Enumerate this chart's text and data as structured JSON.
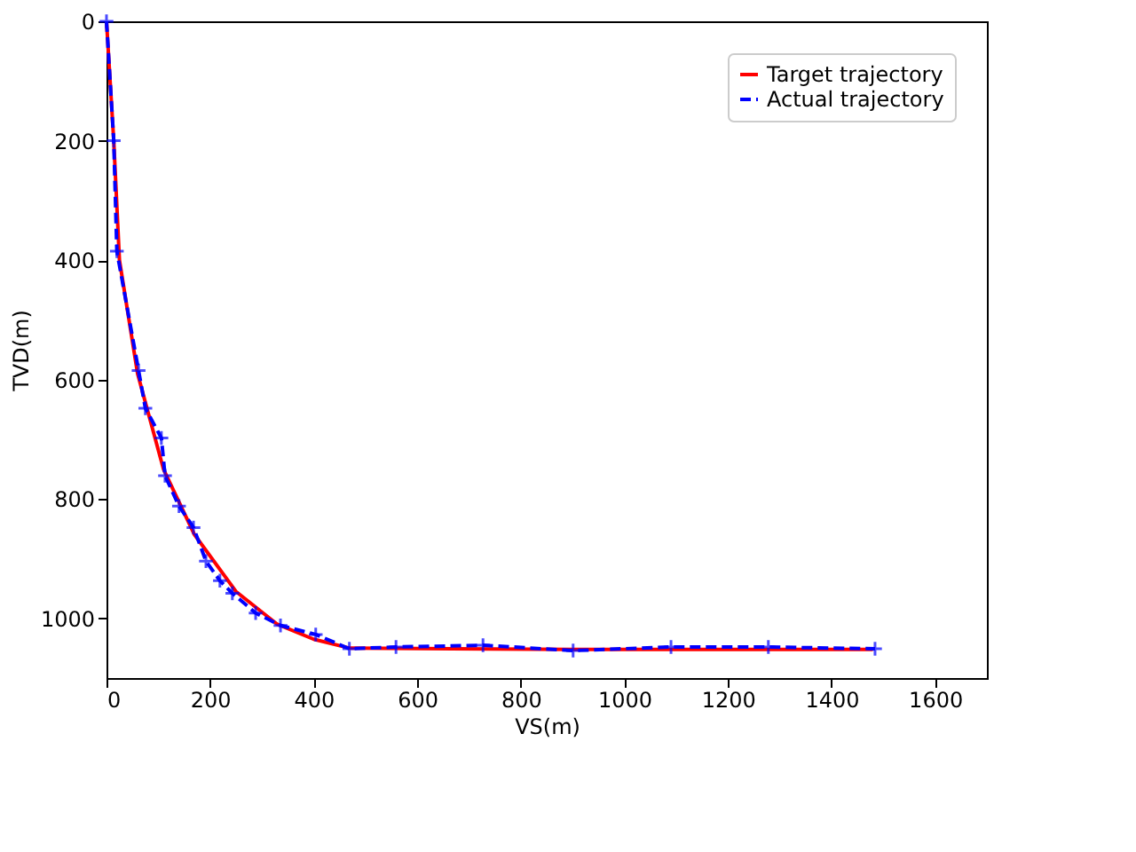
{
  "chart_data": {
    "type": "line",
    "xlabel": "VS(m)",
    "ylabel": "TVD(m)",
    "xlim": [
      0,
      1700
    ],
    "ylim": [
      1100,
      0
    ],
    "xticks": [
      0,
      200,
      400,
      600,
      800,
      1000,
      1200,
      1400,
      1600
    ],
    "yticks": [
      0,
      200,
      400,
      600,
      800,
      1000
    ],
    "grid": false,
    "legend": "top right",
    "series": [
      {
        "name": "Target trajectory",
        "color": "#ff0000",
        "line_style": "solid",
        "marker": "none",
        "x": [
          0,
          14,
          25,
          60,
          110,
          170,
          250,
          330,
          400,
          470,
          900,
          1480
        ],
        "values": [
          0,
          200,
          400,
          590,
          750,
          860,
          955,
          1010,
          1035,
          1050,
          1052,
          1052
        ]
      },
      {
        "name": "Actual trajectory",
        "color": "#0000ff",
        "line_style": "dashed",
        "marker": "cross",
        "x": [
          0,
          14,
          20,
          62,
          75,
          106,
          113,
          140,
          168,
          192,
          219,
          243,
          288,
          336,
          404,
          469,
          559,
          727,
          901,
          1090,
          1278,
          1484
        ],
        "values": [
          0,
          200,
          385,
          585,
          648,
          698,
          761,
          812,
          848,
          904,
          937,
          958,
          991,
          1012,
          1027,
          1051,
          1048,
          1045,
          1054,
          1048,
          1048,
          1051
        ]
      }
    ]
  }
}
